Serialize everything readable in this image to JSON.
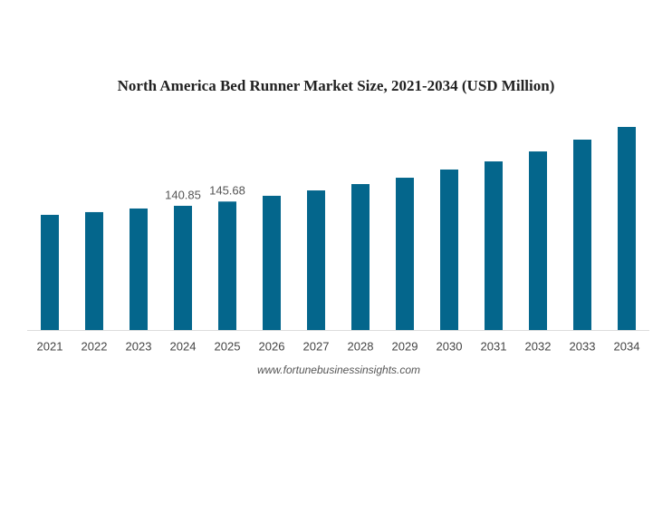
{
  "chart_data": {
    "type": "bar",
    "title": "North America Bed Runner Market Size, 2021-2034 (USD Million)",
    "categories": [
      "2021",
      "2022",
      "2023",
      "2024",
      "2025",
      "2026",
      "2027",
      "2028",
      "2029",
      "2030",
      "2031",
      "2032",
      "2033",
      "2034"
    ],
    "values": [
      130.6,
      133.7,
      137.8,
      140.85,
      145.68,
      152.2,
      158.3,
      165.5,
      172.7,
      182.0,
      191.2,
      202.5,
      215.9,
      230.3
    ],
    "value_labels": [
      null,
      null,
      null,
      "140.85",
      "145.68",
      null,
      null,
      null,
      null,
      null,
      null,
      null,
      null,
      null
    ],
    "color": "#04668c",
    "source": "www.fortunebusinessinsights.com"
  }
}
